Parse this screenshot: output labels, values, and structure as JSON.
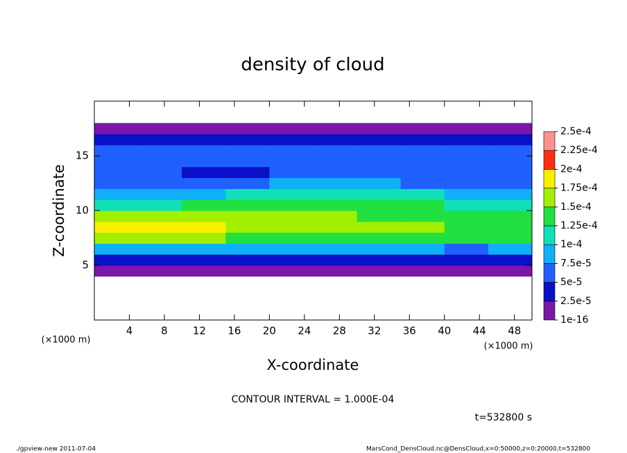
{
  "chart_data": {
    "type": "heatmap",
    "title": "density of cloud",
    "xlabel": "X-coordinate",
    "ylabel": "Z-coordinate",
    "x_unit": "(×1000 m)",
    "y_unit": "(×1000 m)",
    "xlim": [
      0,
      50
    ],
    "ylim": [
      0,
      20
    ],
    "xticks": [
      4,
      8,
      12,
      16,
      20,
      24,
      28,
      32,
      36,
      40,
      44,
      48
    ],
    "yticks": [
      5,
      10,
      15
    ],
    "x": [
      2.5,
      7.5,
      12.5,
      17.5,
      22.5,
      27.5,
      32.5,
      37.5,
      42.5,
      47.5
    ],
    "z": [
      0.5,
      1.5,
      2.5,
      3.5,
      4.5,
      5.5,
      6.5,
      7.5,
      8.5,
      9.5,
      10.5,
      11.5,
      12.5,
      13.5,
      14.5,
      15.5,
      16.5,
      17.5,
      18.5,
      19.5
    ],
    "values": [
      [
        null,
        null,
        null,
        null,
        null,
        null,
        null,
        null,
        null,
        null
      ],
      [
        null,
        null,
        null,
        null,
        null,
        null,
        null,
        null,
        null,
        null
      ],
      [
        null,
        null,
        null,
        null,
        null,
        null,
        null,
        null,
        null,
        null
      ],
      [
        null,
        null,
        null,
        null,
        null,
        null,
        null,
        null,
        null,
        null
      ],
      [
        1e-05,
        1e-05,
        1e-05,
        1e-05,
        1e-05,
        1e-05,
        1e-05,
        1e-05,
        1e-05,
        1e-05
      ],
      [
        3.5e-05,
        3.5e-05,
        3.5e-05,
        3.5e-05,
        3.5e-05,
        3.5e-05,
        3.5e-05,
        3.5e-05,
        3e-05,
        3.5e-05
      ],
      [
        9e-05,
        9e-05,
        9.5e-05,
        9e-05,
        9e-05,
        9e-05,
        9e-05,
        8.5e-05,
        6e-05,
        8e-05
      ],
      [
        0.000155,
        0.00016,
        0.00015,
        0.000145,
        0.00014,
        0.00014,
        0.000135,
        0.000135,
        0.00013,
        0.00013
      ],
      [
        0.00018,
        0.00018,
        0.00018,
        0.00017,
        0.000165,
        0.00016,
        0.000155,
        0.00015,
        0.000145,
        0.000145
      ],
      [
        0.00016,
        0.000165,
        0.00016,
        0.00016,
        0.00016,
        0.000155,
        0.000145,
        0.00014,
        0.000135,
        0.000135
      ],
      [
        0.00011,
        0.000115,
        0.00013,
        0.00014,
        0.00014,
        0.00014,
        0.000135,
        0.000125,
        0.00012,
        0.00012
      ],
      [
        8e-05,
        8e-05,
        9e-05,
        0.0001,
        0.000115,
        0.000115,
        0.00011,
        0.0001,
        9e-05,
        9e-05
      ],
      [
        6e-05,
        6e-05,
        6e-05,
        6.5e-05,
        8e-05,
        8e-05,
        7.5e-05,
        7e-05,
        6.5e-05,
        6.5e-05
      ],
      [
        6e-05,
        5.5e-05,
        4.5e-05,
        4.5e-05,
        6e-05,
        6.5e-05,
        6e-05,
        6e-05,
        6e-05,
        6e-05
      ],
      [
        6.5e-05,
        6.5e-05,
        6e-05,
        6e-05,
        6.5e-05,
        6.5e-05,
        6.5e-05,
        6e-05,
        6e-05,
        6e-05
      ],
      [
        5.5e-05,
        5.5e-05,
        5.5e-05,
        5.5e-05,
        5.5e-05,
        5e-05,
        5e-05,
        5e-05,
        5e-05,
        5.5e-05
      ],
      [
        3e-05,
        3e-05,
        3e-05,
        3e-05,
        3e-05,
        3e-05,
        3e-05,
        3e-05,
        3e-05,
        3e-05
      ],
      [
        1e-05,
        1e-05,
        1e-05,
        1e-05,
        1e-05,
        1e-05,
        1e-05,
        1e-05,
        1e-05,
        1e-05
      ],
      [
        null,
        null,
        null,
        null,
        null,
        null,
        null,
        null,
        null,
        null
      ],
      [
        null,
        null,
        null,
        null,
        null,
        null,
        null,
        null,
        null,
        null
      ]
    ],
    "levels": [
      {
        "value": 1e-16,
        "label": "1e-16"
      },
      {
        "value": 2.5e-05,
        "label": "2.5e-5"
      },
      {
        "value": 5e-05,
        "label": "5e-5"
      },
      {
        "value": 7.5e-05,
        "label": "7.5e-5"
      },
      {
        "value": 0.0001,
        "label": "1e-4"
      },
      {
        "value": 0.000125,
        "label": "1.25e-4"
      },
      {
        "value": 0.00015,
        "label": "1.5e-4"
      },
      {
        "value": 0.000175,
        "label": "1.75e-4"
      },
      {
        "value": 0.0002,
        "label": "2e-4"
      },
      {
        "value": 0.000225,
        "label": "2.25e-4"
      },
      {
        "value": 0.00025,
        "label": "2.5e-4"
      }
    ],
    "colors": [
      "#7a16a8",
      "#0a10c8",
      "#2060ff",
      "#10b0f8",
      "#10e0b8",
      "#20e040",
      "#a0f000",
      "#f8f000",
      "#ff3010",
      "#ff9090"
    ],
    "annotations": [
      "CONTOUR INTERVAL = 1.000E-04",
      "t=532800 s",
      "./gpview-new  2011-07-04",
      "MarsCond_DensCloud.nc@DensCloud,x=0:50000,z=0:20000,t=532800"
    ]
  }
}
